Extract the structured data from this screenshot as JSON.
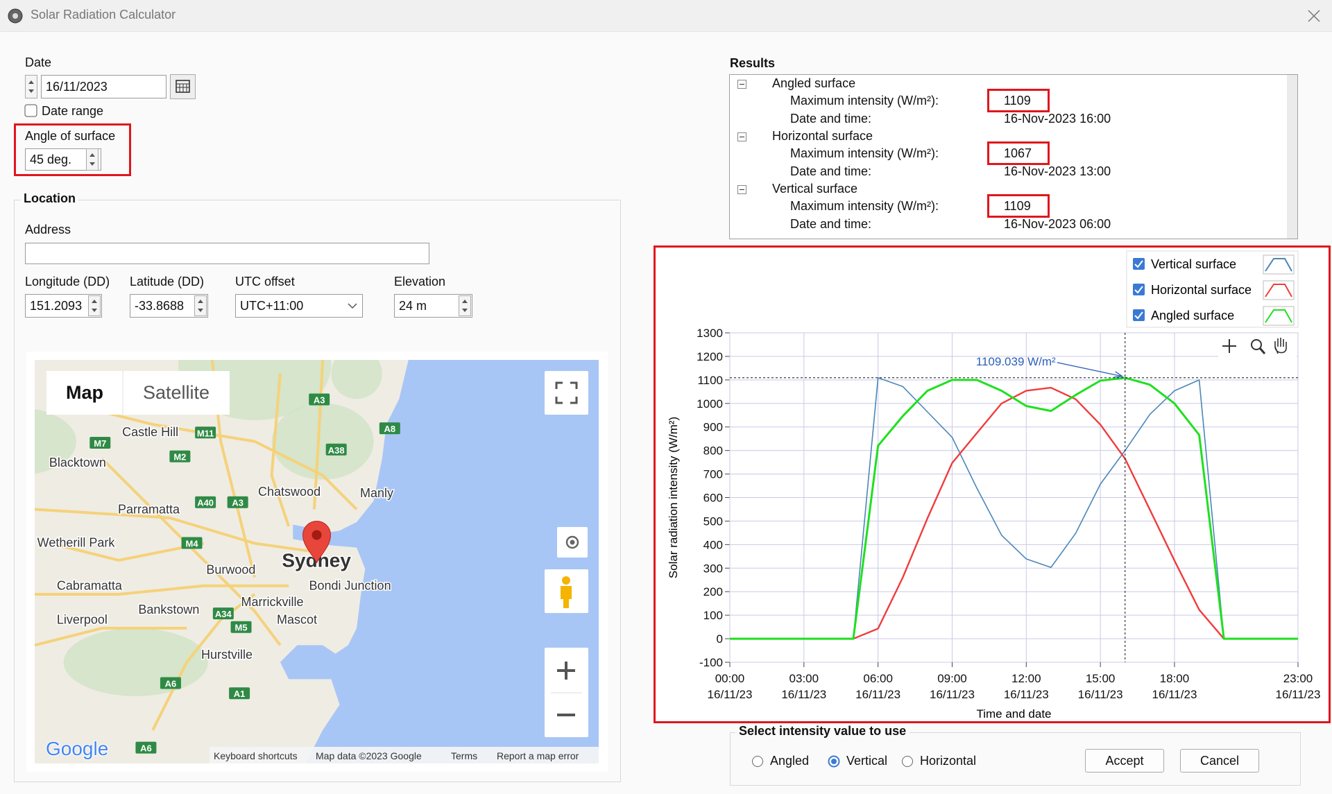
{
  "window": {
    "title": "Solar Radiation Calculator"
  },
  "date": {
    "label": "Date",
    "value": "16/11/2023"
  },
  "date_range": {
    "label": "Date range",
    "checked": false
  },
  "angle": {
    "label": "Angle of surface",
    "value": "45 deg."
  },
  "location": {
    "title": "Location",
    "address_label": "Address",
    "fields": [
      {
        "label": "Longitude (DD)",
        "value": "151.2093"
      },
      {
        "label": "Latitude (DD)",
        "value": "-33.8688"
      },
      {
        "label": "UTC offset",
        "value": "UTC+11:00"
      },
      {
        "label": "Elevation",
        "value": "24 m"
      }
    ]
  },
  "map": {
    "tabs": [
      "Map",
      "Satellite"
    ],
    "places": [
      "Castle Hill",
      "Blacktown",
      "Parramatta",
      "Chatswood",
      "Manly",
      "Wetherill Park",
      "Burwood",
      "Sydney",
      "Bondi Junction",
      "Cabramatta",
      "Bankstown",
      "Marrickville",
      "Mascot",
      "Liverpool",
      "Hurstville"
    ],
    "roads": [
      "M7",
      "M11",
      "M2",
      "A3",
      "A38",
      "A8",
      "A40",
      "A3",
      "M4",
      "A34",
      "M5",
      "A6",
      "A1",
      "A6"
    ],
    "logo": "Google",
    "footer": [
      "Keyboard shortcuts",
      "Map data ©2023 Google",
      "Terms",
      "Report a map error"
    ]
  },
  "results": {
    "title": "Results",
    "groups": [
      {
        "name": "Angled surface",
        "max_label": "Maximum intensity (W/m²):",
        "max": 1109,
        "time_label": "Date and time:",
        "time": "16-Nov-2023 16:00"
      },
      {
        "name": "Horizontal surface",
        "max_label": "Maximum intensity (W/m²):",
        "max": 1067,
        "time_label": "Date and time:",
        "time": "16-Nov-2023 13:00"
      },
      {
        "name": "Vertical surface",
        "max_label": "Maximum intensity (W/m²):",
        "max": 1109,
        "time_label": "Date and time:",
        "time": "16-Nov-2023 06:00"
      }
    ]
  },
  "chart_data": {
    "type": "line",
    "xlabel": "Time and date",
    "ylabel": "Solar radiation intensity (W/m²)",
    "x": [
      0,
      1,
      2,
      3,
      4,
      5,
      6,
      7,
      8,
      9,
      10,
      11,
      12,
      13,
      14,
      15,
      16,
      17,
      18,
      19,
      20,
      21,
      22,
      23
    ],
    "xlim": [
      0,
      23
    ],
    "xticks": [
      {
        "value": 0,
        "label": "00:00\n16/11/23"
      },
      {
        "value": 3,
        "label": "03:00\n16/11/23"
      },
      {
        "value": 6,
        "label": "06:00\n16/11/23"
      },
      {
        "value": 9,
        "label": "09:00\n16/11/23"
      },
      {
        "value": 12,
        "label": "12:00\n16/11/23"
      },
      {
        "value": 15,
        "label": "15:00\n16/11/23"
      },
      {
        "value": 18,
        "label": "18:00\n16/11/23"
      },
      {
        "value": 23,
        "label": "23:00\n16/11/23"
      }
    ],
    "ylim": [
      -100,
      1300
    ],
    "yticks": [
      -100,
      0,
      100,
      200,
      300,
      400,
      500,
      600,
      700,
      800,
      900,
      1000,
      1100,
      1200,
      1300
    ],
    "grid": true,
    "legend": "top-right",
    "series": [
      {
        "name": "Vertical surface",
        "color": "#4a86b8",
        "values": [
          0,
          0,
          0,
          0,
          0,
          0,
          1109,
          1072,
          964,
          856,
          640,
          440,
          339,
          303,
          448,
          657,
          800,
          953,
          1054,
          1100,
          0,
          0,
          0,
          0
        ]
      },
      {
        "name": "Horizontal surface",
        "color": "#f03c3c",
        "values": [
          0,
          0,
          0,
          0,
          0,
          0,
          43,
          260,
          512,
          747,
          874,
          1000,
          1054,
          1067,
          1018,
          910,
          765,
          549,
          332,
          123,
          0,
          0,
          0,
          0
        ]
      },
      {
        "name": "Angled surface",
        "color": "#1fe01f",
        "values": [
          0,
          0,
          0,
          0,
          0,
          0,
          820,
          946,
          1054,
          1100,
          1100,
          1054,
          989,
          968,
          1036,
          1097,
          1109,
          1080,
          1000,
          866,
          0,
          0,
          0,
          0
        ]
      }
    ],
    "crosshair": {
      "x": 16,
      "y": 1109.039
    },
    "annotation": "1109.039 W/m²"
  },
  "select": {
    "title": "Select intensity value to use",
    "options": [
      "Angled",
      "Vertical",
      "Horizontal"
    ],
    "selected": 1
  },
  "buttons": [
    "Accept",
    "Cancel"
  ]
}
